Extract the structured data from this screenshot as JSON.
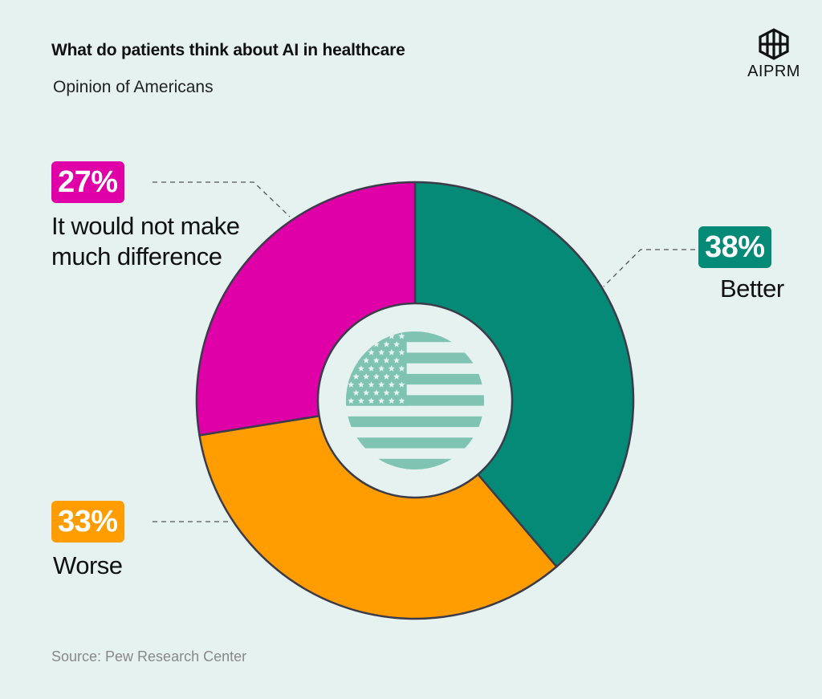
{
  "header": {
    "title": "What do patients think about AI in healthcare",
    "subtitle": "Opinion of Americans"
  },
  "logo": {
    "text": "AIPRM",
    "icon": "aiprm-logo-icon"
  },
  "colors": {
    "background": "#e6f2ef",
    "better": "#068a78",
    "worse": "#ff9c00",
    "no_difference": "#e000a8",
    "flag": "#7fc3b3",
    "outline": "#3b3b4a"
  },
  "chart_data": {
    "type": "pie",
    "variant": "donut",
    "slices": [
      {
        "label": "Better",
        "value": 38,
        "display": "38%",
        "color": "#068a78"
      },
      {
        "label": "Worse",
        "value": 33,
        "display": "33%",
        "color": "#ff9c00"
      },
      {
        "label": "It would not make much difference",
        "value": 27,
        "display": "27%",
        "color": "#e000a8"
      }
    ],
    "center_icon": "us-flag-icon"
  },
  "labels": {
    "better": {
      "pct": "38%",
      "text": "Better"
    },
    "worse": {
      "pct": "33%",
      "text": "Worse"
    },
    "no_difference": {
      "pct": "27%",
      "line1": "It would not make",
      "line2": "much difference"
    }
  },
  "footer": {
    "source": "Source: Pew Research Center"
  }
}
